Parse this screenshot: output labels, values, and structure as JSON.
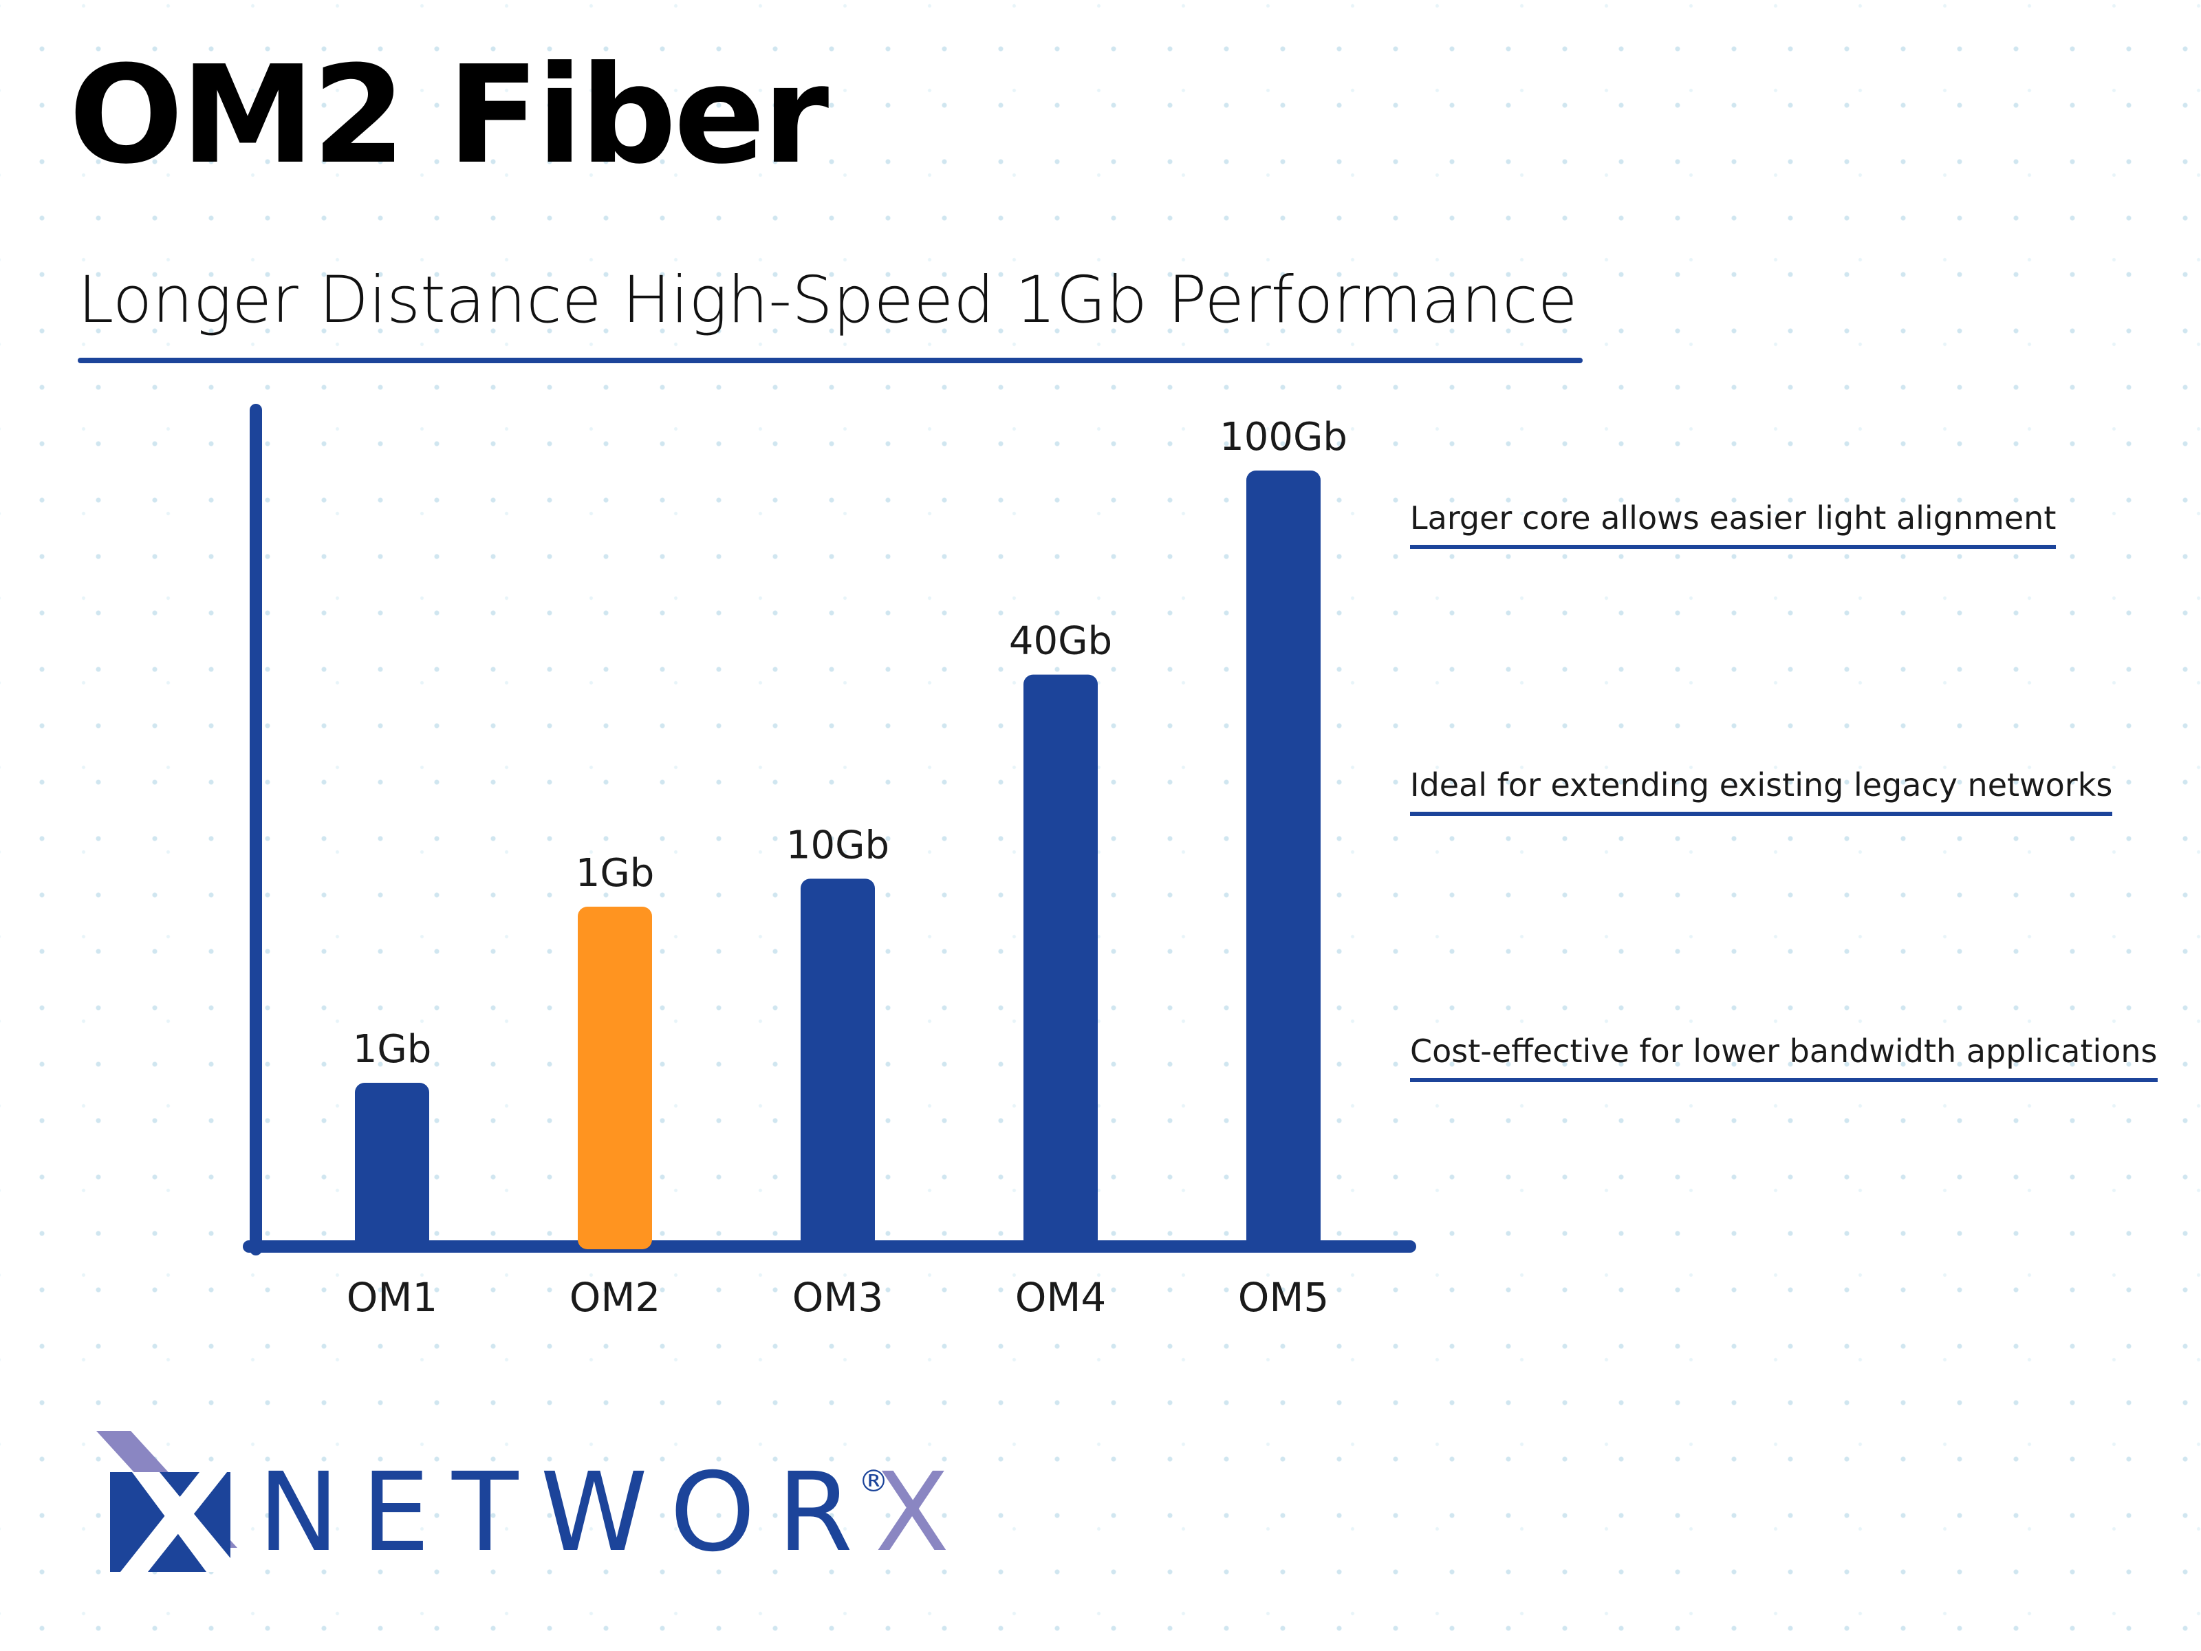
{
  "colors": {
    "primary": "#1c449a",
    "highlight": "#ff9420",
    "logo_light": "#8a86c2"
  },
  "header": {
    "title": "OM2 Fiber",
    "subtitle": "Longer Distance High-Speed 1Gb Performance"
  },
  "chart_data": {
    "type": "bar",
    "categories": [
      "OM1",
      "OM2",
      "OM3",
      "OM4",
      "OM5"
    ],
    "values": [
      1,
      1,
      10,
      40,
      100
    ],
    "unit": "Gb",
    "data_labels": [
      "1Gb",
      "1Gb",
      "10Gb",
      "40Gb",
      "100Gb"
    ],
    "highlight_category": "OM2",
    "axis_scale": "nonlinear",
    "grid": false,
    "legend": "none"
  },
  "features": [
    "Larger core allows easier light alignment",
    "Ideal for extending existing legacy networks",
    "Cost-effective for lower bandwidth applications"
  ],
  "logo": {
    "brand_dark": "NETWOR",
    "brand_light": "X",
    "registered": "®",
    "icon": "networx-x-logo-icon"
  }
}
